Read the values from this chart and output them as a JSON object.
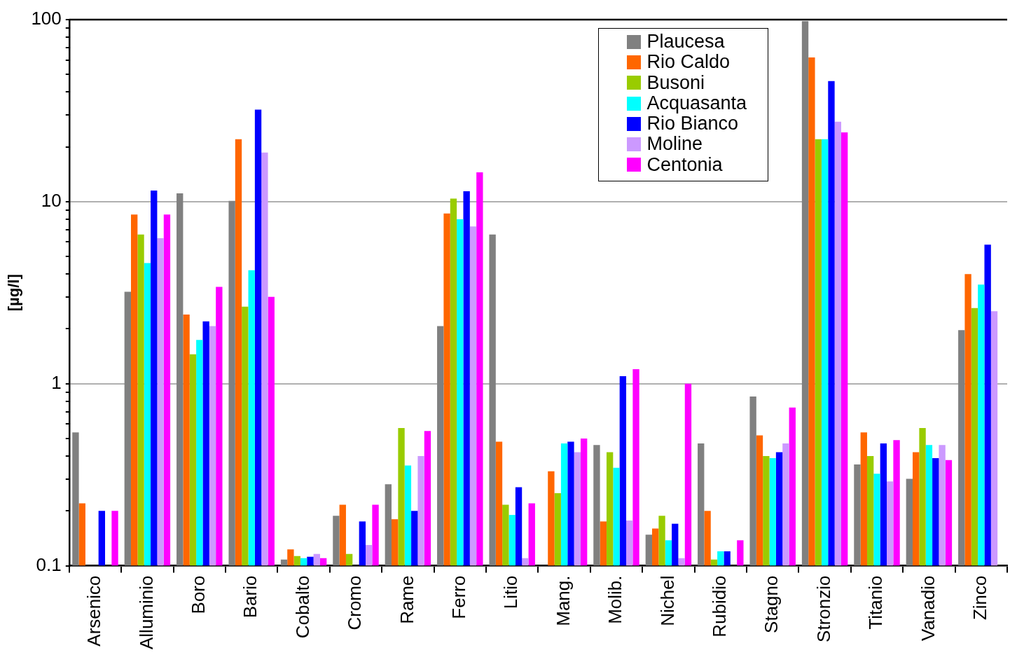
{
  "chart_data": {
    "type": "bar",
    "ylabel": "[µg/l]",
    "log": true,
    "grid": "y",
    "legend": "top right",
    "categories": [
      "Arsenico",
      "Alluminio",
      "Boro",
      "Bario",
      "Cobalto",
      "Cromo",
      "Rame",
      "Ferro",
      "Litio",
      "Mang.",
      "Molib.",
      "Nichel",
      "Rubidio",
      "Stagno",
      "Stronzio",
      "Titanio",
      "Vanadio",
      "Zinco"
    ],
    "ylim": [
      0.1,
      100
    ],
    "yticks": [
      0.1,
      {
        "value": 0.2,
        "label": null
      },
      {
        "value": 0.3,
        "label": null
      },
      {
        "value": 0.4,
        "label": null
      },
      {
        "value": 0.5,
        "label": null
      },
      {
        "value": 0.6,
        "label": null
      },
      {
        "value": 0.7,
        "label": null
      },
      {
        "value": 0.8,
        "label": null
      },
      {
        "value": 0.9,
        "label": null
      },
      1,
      {
        "value": 2,
        "label": null
      },
      {
        "value": 3,
        "label": null
      },
      {
        "value": 4,
        "label": null
      },
      {
        "value": 5,
        "label": null
      },
      {
        "value": 6,
        "label": null
      },
      {
        "value": 7,
        "label": null
      },
      {
        "value": 8,
        "label": null
      },
      {
        "value": 9,
        "label": null
      },
      10,
      {
        "value": 20,
        "label": null
      },
      {
        "value": 30,
        "label": null
      },
      {
        "value": 40,
        "label": null
      },
      {
        "value": 50,
        "label": null
      },
      {
        "value": 60,
        "label": null
      },
      {
        "value": 70,
        "label": null
      },
      {
        "value": 80,
        "label": null
      },
      {
        "value": 90,
        "label": null
      },
      100
    ],
    "series": [
      {
        "name": "Plaucesa",
        "color": "#808080",
        "values": [
          0.54,
          3.2,
          11.1,
          10.1,
          0.108,
          0.188,
          0.28,
          2.07,
          6.6,
          null,
          0.46,
          0.148,
          0.47,
          0.85,
          98,
          0.36,
          0.3,
          1.97
        ]
      },
      {
        "name": "Rio Caldo",
        "color": "#ff6600",
        "values": [
          0.22,
          8.5,
          2.4,
          22,
          0.123,
          0.216,
          0.18,
          8.6,
          0.48,
          0.33,
          0.175,
          0.16,
          0.2,
          0.52,
          62,
          0.54,
          0.42,
          4.0
        ]
      },
      {
        "name": "Busoni",
        "color": "#99cc00",
        "values": [
          null,
          6.6,
          1.45,
          2.65,
          0.113,
          0.116,
          0.57,
          10.4,
          0.216,
          0.25,
          0.42,
          0.188,
          0.108,
          0.4,
          22,
          0.4,
          0.57,
          2.6
        ]
      },
      {
        "name": "Acquasanta",
        "color": "#00ffff",
        "values": [
          null,
          4.6,
          1.74,
          4.2,
          0.11,
          null,
          0.355,
          8.0,
          0.19,
          0.47,
          0.345,
          0.138,
          0.12,
          0.39,
          22,
          0.32,
          0.46,
          3.5
        ]
      },
      {
        "name": "Rio Bianco",
        "color": "#0000ff",
        "values": [
          0.2,
          11.5,
          2.2,
          32,
          0.112,
          0.175,
          0.2,
          11.4,
          0.27,
          0.48,
          1.1,
          0.17,
          0.12,
          0.42,
          46,
          0.47,
          0.39,
          5.8
        ]
      },
      {
        "name": "Moline",
        "color": "#cc99ff",
        "values": [
          null,
          6.3,
          2.07,
          18.6,
          0.116,
          0.13,
          0.4,
          7.3,
          0.11,
          0.42,
          0.177,
          0.11,
          null,
          0.47,
          27.5,
          0.29,
          0.46,
          2.5
        ]
      },
      {
        "name": "Centonia",
        "color": "#ff00ff",
        "values": [
          0.2,
          8.5,
          3.4,
          3.0,
          0.11,
          0.216,
          0.55,
          14.5,
          0.22,
          0.5,
          1.2,
          1.0,
          0.138,
          0.74,
          24,
          0.49,
          0.38,
          null
        ]
      }
    ]
  }
}
